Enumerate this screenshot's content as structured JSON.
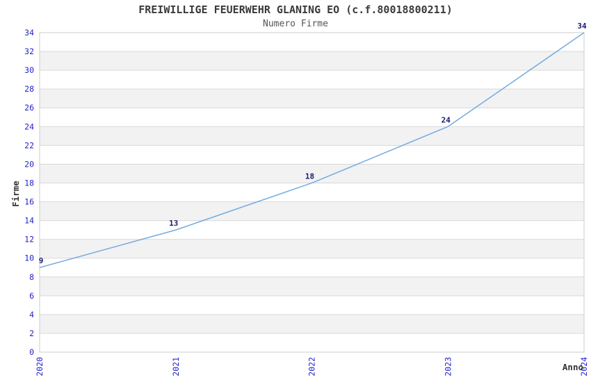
{
  "chart_data": {
    "type": "line",
    "title": "FREIWILLIGE FEUERWEHR GLANING EO (c.f.80018800211)",
    "subtitle": "Numero Firme",
    "xlabel": "Anno",
    "ylabel": "Firme",
    "x": [
      2020,
      2021,
      2022,
      2023,
      2024
    ],
    "series": [
      {
        "name": "Numero Firme",
        "values": [
          9,
          13,
          18,
          24,
          34
        ]
      }
    ],
    "point_labels": [
      "9",
      "13",
      "18",
      "24",
      "34"
    ],
    "ylim": [
      0,
      34
    ],
    "ytick_step": 2,
    "yticks": [
      0,
      2,
      4,
      6,
      8,
      10,
      12,
      14,
      16,
      18,
      20,
      22,
      24,
      26,
      28,
      30,
      32,
      34
    ],
    "grid": "horizontal",
    "banded_background": true,
    "legend": "none",
    "colors": {
      "line": "#74aadf",
      "tick_label": "#2323cd",
      "point_label": "#1a1a70",
      "axis_label": "#333333",
      "title": "#3a3a3a",
      "subtitle": "#555555",
      "band": "#f2f2f2",
      "grid_line": "#d9d9d9",
      "plot_border": "#cccccc",
      "background": "#ffffff"
    }
  }
}
